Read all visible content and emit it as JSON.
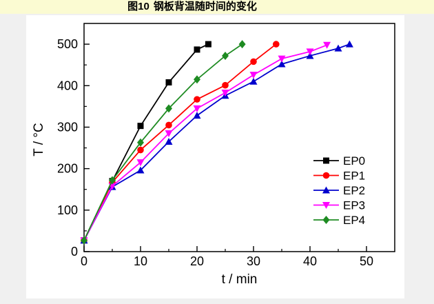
{
  "page": {
    "background_color": "#F0F0F0",
    "panel_color": "#FFFFFF",
    "title_bar_color": "#FBFBD2"
  },
  "header": {
    "figure_label": "图10",
    "figure_title": "钢板背温随时间的变化"
  },
  "chart_data": {
    "type": "line",
    "title": "图10 钢板背温随时间的变化",
    "xlabel": "t / min",
    "ylabel": "T / °C",
    "xlim": [
      0,
      55
    ],
    "ylim": [
      0,
      550
    ],
    "xticks": [
      0,
      10,
      20,
      30,
      40,
      50
    ],
    "yticks": [
      0,
      100,
      200,
      300,
      400,
      500
    ],
    "x_minor_ticks": [
      5,
      15,
      25,
      35,
      45
    ],
    "y_minor_ticks": [
      50,
      150,
      250,
      350,
      450
    ],
    "grid": false,
    "frame": true,
    "legend_position": "inside-right-middle",
    "axis_color": "#000000",
    "series": [
      {
        "name": "EP0",
        "color": "#000000",
        "marker": "square",
        "points": [
          [
            0,
            27
          ],
          [
            5,
            170
          ],
          [
            10,
            303
          ],
          [
            15,
            408
          ],
          [
            20,
            487
          ],
          [
            22,
            500
          ]
        ]
      },
      {
        "name": "EP1",
        "color": "#FF0000",
        "marker": "circle",
        "points": [
          [
            0,
            27
          ],
          [
            5,
            167
          ],
          [
            10,
            245
          ],
          [
            15,
            305
          ],
          [
            20,
            367
          ],
          [
            25,
            401
          ],
          [
            30,
            458
          ],
          [
            34,
            500
          ]
        ]
      },
      {
        "name": "EP2",
        "color": "#0000CD",
        "marker": "triangle-up",
        "points": [
          [
            0,
            27
          ],
          [
            5,
            156
          ],
          [
            10,
            196
          ],
          [
            15,
            265
          ],
          [
            20,
            328
          ],
          [
            25,
            376
          ],
          [
            30,
            410
          ],
          [
            35,
            452
          ],
          [
            40,
            472
          ],
          [
            45,
            490
          ],
          [
            47,
            500
          ]
        ]
      },
      {
        "name": "EP3",
        "color": "#FF00FF",
        "marker": "triangle-down",
        "points": [
          [
            0,
            27
          ],
          [
            5,
            158
          ],
          [
            10,
            215
          ],
          [
            15,
            285
          ],
          [
            20,
            345
          ],
          [
            25,
            383
          ],
          [
            30,
            426
          ],
          [
            35,
            465
          ],
          [
            40,
            482
          ],
          [
            43,
            498
          ]
        ]
      },
      {
        "name": "EP4",
        "color": "#1E8B22",
        "marker": "diamond",
        "points": [
          [
            0,
            27
          ],
          [
            5,
            172
          ],
          [
            10,
            263
          ],
          [
            15,
            345
          ],
          [
            20,
            415
          ],
          [
            25,
            472
          ],
          [
            28,
            500
          ]
        ]
      }
    ]
  }
}
